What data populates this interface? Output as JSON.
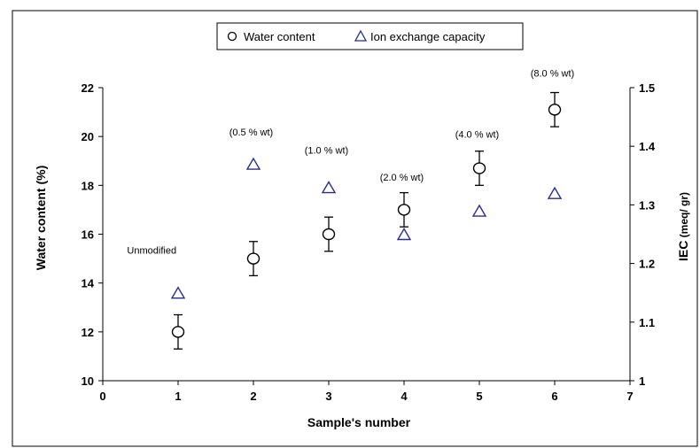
{
  "chart_data": {
    "type": "scatter",
    "xlabel": "Sample's number",
    "ylabel": "Water content (%)",
    "y2label_main": "IEC",
    "y2label_unit": " (meq/ gr)",
    "xlim": [
      0,
      7
    ],
    "ylim": [
      10,
      22
    ],
    "y2lim": [
      1,
      1.5
    ],
    "x_ticks": [
      "0",
      "1",
      "2",
      "3",
      "4",
      "5",
      "6",
      "7"
    ],
    "y_ticks": [
      "10",
      "12",
      "14",
      "16",
      "18",
      "20",
      "22"
    ],
    "y2_ticks": [
      "1",
      "1.1",
      "1.2",
      "1.3",
      "1.4",
      "1.5"
    ],
    "grid": false,
    "legend_position": "top-center",
    "series": [
      {
        "name": "Water content",
        "marker": "circle",
        "axis": "left",
        "x": [
          1,
          2,
          3,
          4,
          5,
          6
        ],
        "y": [
          12.0,
          15.0,
          16.0,
          17.0,
          18.7,
          21.1
        ],
        "error": [
          0.7,
          0.7,
          0.7,
          0.7,
          0.7,
          0.7
        ]
      },
      {
        "name": "Ion exchange capacity",
        "marker": "triangle",
        "color": "#2b2b8c",
        "axis": "right",
        "x": [
          1,
          2,
          3,
          4,
          5,
          6
        ],
        "y": [
          1.15,
          1.37,
          1.33,
          1.25,
          1.29,
          1.32
        ]
      }
    ],
    "annotations": [
      {
        "text": "Unmodified",
        "x": 0.65,
        "y": 15.2
      },
      {
        "text": "(0.5 % wt)",
        "x": 1.97,
        "y": 20.05
      },
      {
        "text": "(1.0 % wt)",
        "x": 2.97,
        "y": 19.3
      },
      {
        "text": "(2.0 % wt)",
        "x": 3.97,
        "y": 18.2
      },
      {
        "text": "(4.0 % wt)",
        "x": 4.97,
        "y": 19.95
      },
      {
        "text": "(8.0 % wt)",
        "x": 5.97,
        "y": 22.45
      }
    ]
  }
}
